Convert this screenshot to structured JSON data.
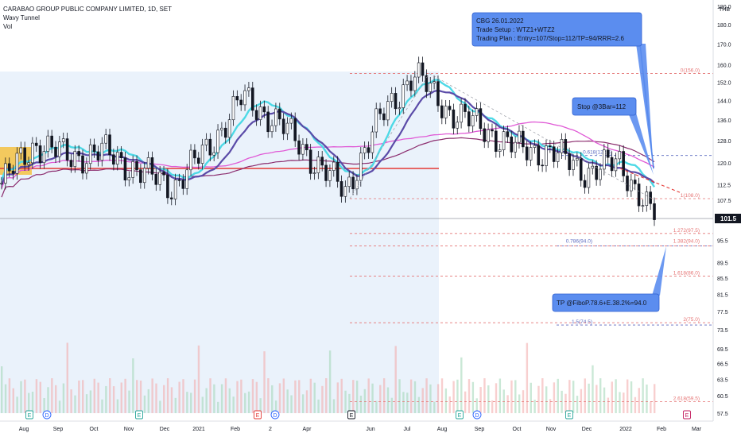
{
  "header": {
    "title": "CARABAO GROUP PUBLIC COMPANY LIMITED, 1D, SET",
    "indicator": "Wavy Tunnel",
    "volume_label": "Vol"
  },
  "axis": {
    "currency": "THB",
    "last_price": "101.5",
    "y_ticks": [
      "190.0",
      "180.0",
      "170.0",
      "160.0",
      "152.0",
      "144.0",
      "136.0",
      "128.0",
      "120.0",
      "112.5",
      "107.5",
      "101.5",
      "95.5",
      "89.5",
      "85.5",
      "81.5",
      "77.5",
      "73.5",
      "69.5",
      "66.5",
      "63.5",
      "60.5",
      "57.5"
    ],
    "x_ticks": [
      "Aug",
      "Sep",
      "Oct",
      "Nov",
      "Dec",
      "2021",
      "Feb",
      "2",
      "Apr",
      "Jun",
      "Jul",
      "Aug",
      "Sep",
      "Oct",
      "Nov",
      "Dec",
      "2022",
      "Feb",
      "Mar"
    ]
  },
  "annotations": {
    "setup_box": [
      "CBG 26.01.2022",
      "Trade Setup : WTZ1+WTZ2",
      "Trading Plan : Entry=107/Stop=112/TP=94/RRR=2.6"
    ],
    "stop_box": "Stop @3Bar=112",
    "tp_box": "TP @FiboP.78.6+E.38.2%=94.0"
  },
  "fib_labels": {
    "f0": "0(156.0)",
    "f0618": "0.618(122.6)",
    "f1": "1(108.0)",
    "f1272": "1.272(97.5)",
    "f0786": "0.786(94.0)",
    "f1382": "1.382(94.0)",
    "f1618": "1.618(86.0)",
    "f15": "1.5(74.5)",
    "f2": "2(75.0)",
    "f2618": "2.618(59.5)"
  },
  "events": {
    "earnings": "E",
    "dividend": "D"
  },
  "colors": {
    "up_candle": "#131722",
    "tunnel_fast": "#4dd9e6",
    "tunnel_slow": "#5b4ba8",
    "ema_long": "#e05ad6",
    "ema_longest": "#8b2c6e",
    "support": "#e53935",
    "fib_red": "#e57373",
    "fib_blue": "#5c6bc0",
    "callout": "#5b8def",
    "shade": "#eaf2fb",
    "supply_zone": "#f5c242"
  },
  "chart_data": {
    "type": "candlestick",
    "ylim": [
      57.5,
      190.0
    ],
    "y_scale": "log",
    "x_range": [
      "Jul 2020",
      "Mar 2022"
    ],
    "close_series_approx": [
      {
        "x": "Jul 2020",
        "y": 113
      },
      {
        "x": "Aug 2020",
        "y": 127
      },
      {
        "x": "Sep 2020",
        "y": 122
      },
      {
        "x": "Oct 2020",
        "y": 124
      },
      {
        "x": "Nov 2020",
        "y": 117
      },
      {
        "x": "Dec 2020",
        "y": 112
      },
      {
        "x": "Jan 2021",
        "y": 125
      },
      {
        "x": "Feb 2021",
        "y": 145
      },
      {
        "x": "Mar 2021",
        "y": 136
      },
      {
        "x": "Apr 2021",
        "y": 122
      },
      {
        "x": "May 2021",
        "y": 110
      },
      {
        "x": "Jun 2021",
        "y": 136
      },
      {
        "x": "Jul 2021",
        "y": 156
      },
      {
        "x": "Aug 2021",
        "y": 140
      },
      {
        "x": "Sep 2021",
        "y": 133
      },
      {
        "x": "Oct 2021",
        "y": 125
      },
      {
        "x": "Nov 2021",
        "y": 124
      },
      {
        "x": "Dec 2021",
        "y": 117
      },
      {
        "x": "Jan 2022",
        "y": 120
      },
      {
        "x": "Jan 26 2022",
        "y": 101.5
      }
    ],
    "fib_levels": [
      {
        "ratio": "0",
        "value": 156.0
      },
      {
        "ratio": "0.618",
        "value": 122.6
      },
      {
        "ratio": "1",
        "value": 108.0
      },
      {
        "ratio": "1.272",
        "value": 97.5
      },
      {
        "ratio": "0.786",
        "value": 94.0
      },
      {
        "ratio": "1.382",
        "value": 94.0
      },
      {
        "ratio": "1.618",
        "value": 86.0
      },
      {
        "ratio": "1.5",
        "value": 74.5
      },
      {
        "ratio": "2",
        "value": 75.0
      },
      {
        "ratio": "2.618",
        "value": 59.5
      }
    ],
    "support_level": 117,
    "last_price": 101.5
  }
}
